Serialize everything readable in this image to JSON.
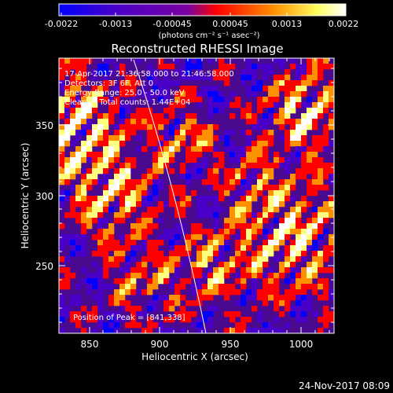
{
  "colorbar": {
    "tick_labels": [
      "-0.0022",
      "-0.0013",
      "-0.00045",
      "0.00045",
      "0.0013",
      "0.0022"
    ],
    "unit_label": "(photons cm⁻² s⁻¹ asec⁻²)",
    "colors": [
      "#0000ff",
      "#4a00c8",
      "#8000aa",
      "#ff0000",
      "#ff9000",
      "#ffff80",
      "#ffffff"
    ]
  },
  "image": {
    "title": "Reconstructed RHESSI Image",
    "info_lines": [
      "17-Apr-2017 21:36:58.000 to 21:46:58.000",
      "Detectors: 3F 6F, Att 0",
      "Energy Range: 25.0 - 50.0 keV",
      "Clean     Total counts: 1.44E+04"
    ],
    "peak_text": "Position of Peak = [841,338]",
    "x_axis": {
      "label": "Heliocentric X (arcsec)",
      "ticks": [
        "850",
        "900",
        "950",
        "1000"
      ]
    },
    "y_axis": {
      "label": "Heliocentric Y (arcsec)",
      "ticks": [
        "250",
        "300",
        "350"
      ]
    }
  },
  "footer": {
    "timestamp": "24-Nov-2017 08:09"
  }
}
